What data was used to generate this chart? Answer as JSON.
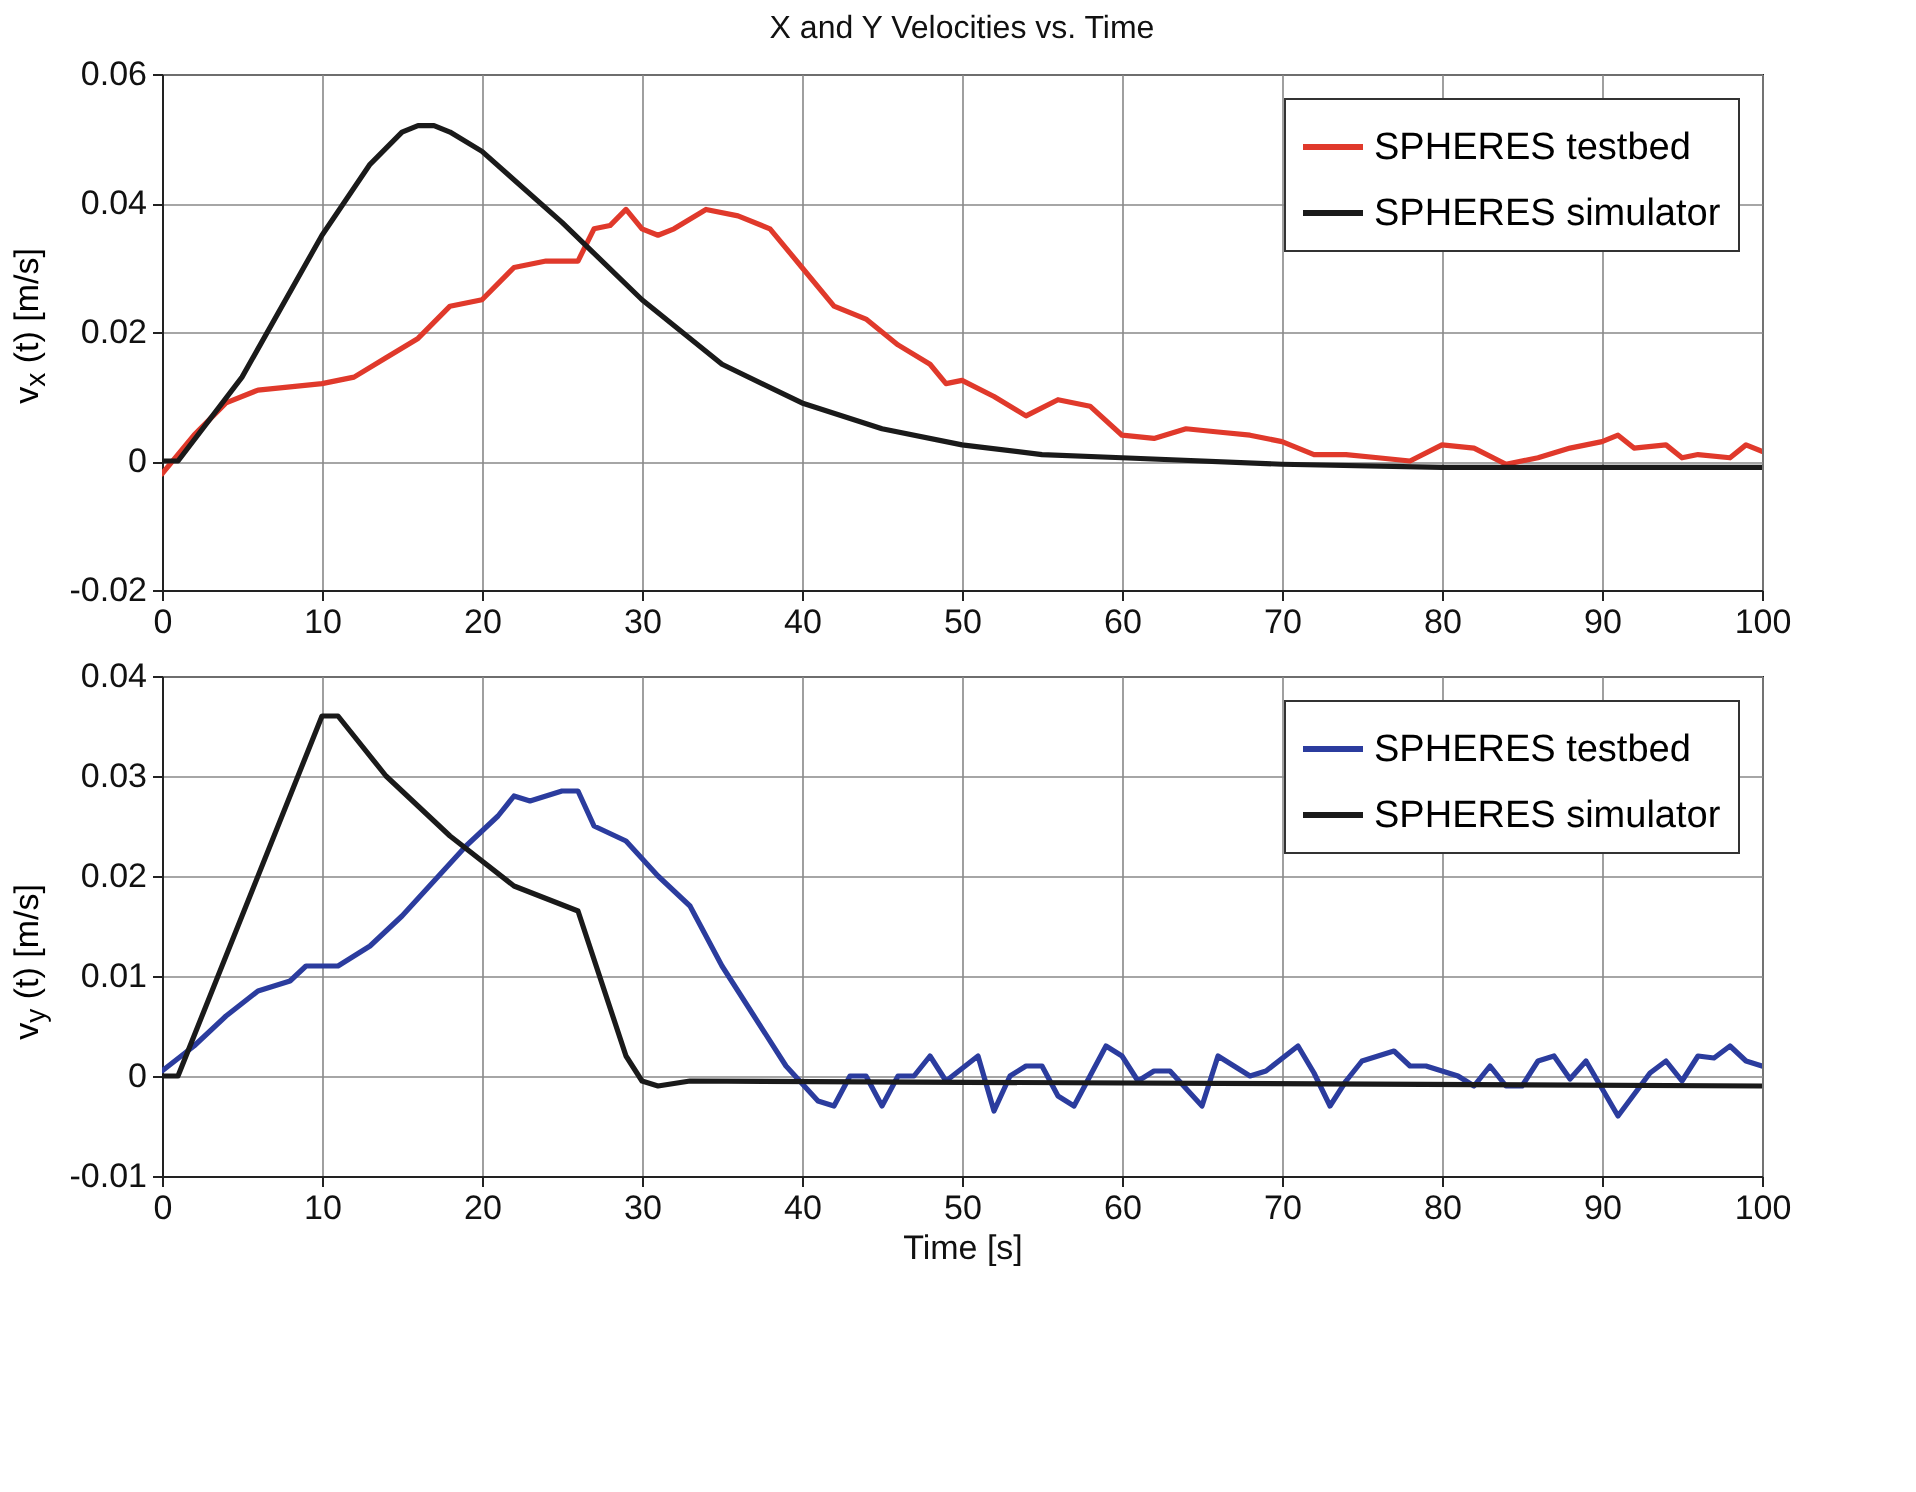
{
  "chart_data": [
    {
      "type": "line",
      "title": "X and Y Velocities vs. Time",
      "ylabel": "v$_{x}$ (t) [m/s]",
      "xlim": [
        0,
        100
      ],
      "xticks": [
        0,
        10,
        20,
        30,
        40,
        50,
        60,
        70,
        80,
        90,
        100
      ],
      "ylim": [
        -0.02,
        0.06
      ],
      "yticks": [
        -0.02,
        0,
        0.02,
        0.04,
        0.06
      ],
      "grid": true,
      "legend": "top right",
      "series": [
        {
          "name": "SPHERES testbed",
          "color": "#e0392b",
          "x": [
            0,
            2,
            4,
            6,
            8,
            10,
            12,
            14,
            16,
            18,
            20,
            22,
            24,
            26,
            27,
            28,
            29,
            30,
            31,
            32,
            34,
            36,
            38,
            40,
            42,
            44,
            46,
            48,
            49,
            50,
            52,
            54,
            56,
            58,
            60,
            62,
            64,
            66,
            68,
            70,
            72,
            74,
            76,
            78,
            80,
            82,
            84,
            86,
            88,
            90,
            91,
            92,
            94,
            95,
            96,
            98,
            99,
            100
          ],
          "values": [
            -0.002,
            0.004,
            0.009,
            0.011,
            0.0115,
            0.012,
            0.013,
            0.016,
            0.019,
            0.024,
            0.025,
            0.03,
            0.031,
            0.031,
            0.036,
            0.0365,
            0.039,
            0.036,
            0.035,
            0.036,
            0.039,
            0.038,
            0.036,
            0.03,
            0.024,
            0.022,
            0.018,
            0.015,
            0.012,
            0.0125,
            0.01,
            0.007,
            0.0095,
            0.0085,
            0.004,
            0.0035,
            0.005,
            0.0045,
            0.004,
            0.003,
            0.001,
            0.001,
            0.0005,
            0,
            0.0025,
            0.002,
            -0.0005,
            0.0005,
            0.002,
            0.003,
            0.004,
            0.002,
            0.0025,
            0.0005,
            0.001,
            0.0005,
            0.0025,
            0.0015
          ]
        },
        {
          "name": "SPHERES simulator",
          "color": "#1a1a1a",
          "x": [
            0,
            1,
            5,
            10,
            13,
            15,
            16,
            17,
            18,
            20,
            25,
            30,
            35,
            40,
            45,
            50,
            55,
            60,
            70,
            80,
            100
          ],
          "values": [
            0,
            0,
            0.013,
            0.035,
            0.046,
            0.051,
            0.052,
            0.052,
            0.051,
            0.048,
            0.037,
            0.025,
            0.015,
            0.009,
            0.005,
            0.0025,
            0.001,
            0.0005,
            -0.0005,
            -0.001,
            -0.001
          ]
        }
      ]
    },
    {
      "type": "line",
      "xlabel": "Time [s]",
      "ylabel": "v$_{y}$ (t) [m/s]",
      "xlim": [
        0,
        100
      ],
      "xticks": [
        0,
        10,
        20,
        30,
        40,
        50,
        60,
        70,
        80,
        90,
        100
      ],
      "ylim": [
        -0.01,
        0.04
      ],
      "yticks": [
        -0.01,
        0,
        0.01,
        0.02,
        0.03,
        0.04
      ],
      "grid": true,
      "legend": "top right",
      "series": [
        {
          "name": "SPHERES testbed",
          "color": "#2b3c9e",
          "x": [
            0,
            2,
            4,
            6,
            8,
            9,
            11,
            13,
            15,
            17,
            19,
            21,
            22,
            23,
            24,
            25,
            26,
            27,
            29,
            31,
            33,
            35,
            37,
            39,
            41,
            42,
            43,
            44,
            45,
            46,
            47,
            48,
            49,
            51,
            52,
            53,
            54,
            55,
            56,
            57,
            59,
            60,
            61,
            62,
            63,
            65,
            66,
            68,
            69,
            71,
            72,
            73,
            74,
            75,
            77,
            78,
            79,
            81,
            82,
            83,
            84,
            85,
            86,
            87,
            88,
            89,
            91,
            93,
            94,
            95,
            96,
            97,
            98,
            99,
            100
          ],
          "values": [
            0.0005,
            0.003,
            0.006,
            0.0085,
            0.0095,
            0.011,
            0.011,
            0.013,
            0.016,
            0.0195,
            0.023,
            0.026,
            0.028,
            0.0275,
            0.028,
            0.0285,
            0.0285,
            0.025,
            0.0235,
            0.02,
            0.017,
            0.011,
            0.006,
            0.001,
            -0.0025,
            -0.003,
            0,
            0,
            -0.003,
            0,
            0,
            0.002,
            -0.0005,
            0.002,
            -0.0035,
            0,
            0.001,
            0.001,
            -0.002,
            -0.003,
            0.003,
            0.002,
            -0.0005,
            0.0005,
            0.0005,
            -0.003,
            0.002,
            0,
            0.0005,
            0.003,
            0.0003,
            -0.003,
            -0.0005,
            0.0015,
            0.0025,
            0.001,
            0.001,
            0,
            -0.001,
            0.001,
            -0.001,
            -0.001,
            0.0015,
            0.002,
            -0.0003,
            0.0015,
            -0.004,
            0.0003,
            0.0015,
            -0.0005,
            0.002,
            0.0018,
            0.003,
            0.0015,
            0.001
          ]
        },
        {
          "name": "SPHERES simulator",
          "color": "#1a1a1a",
          "x": [
            0,
            1,
            10,
            11,
            14,
            18,
            22,
            26,
            29,
            30,
            31,
            33,
            100
          ],
          "values": [
            0,
            0,
            0.036,
            0.036,
            0.03,
            0.024,
            0.019,
            0.0165,
            0.002,
            -0.0005,
            -0.001,
            -0.0005,
            -0.001
          ]
        }
      ]
    }
  ]
}
